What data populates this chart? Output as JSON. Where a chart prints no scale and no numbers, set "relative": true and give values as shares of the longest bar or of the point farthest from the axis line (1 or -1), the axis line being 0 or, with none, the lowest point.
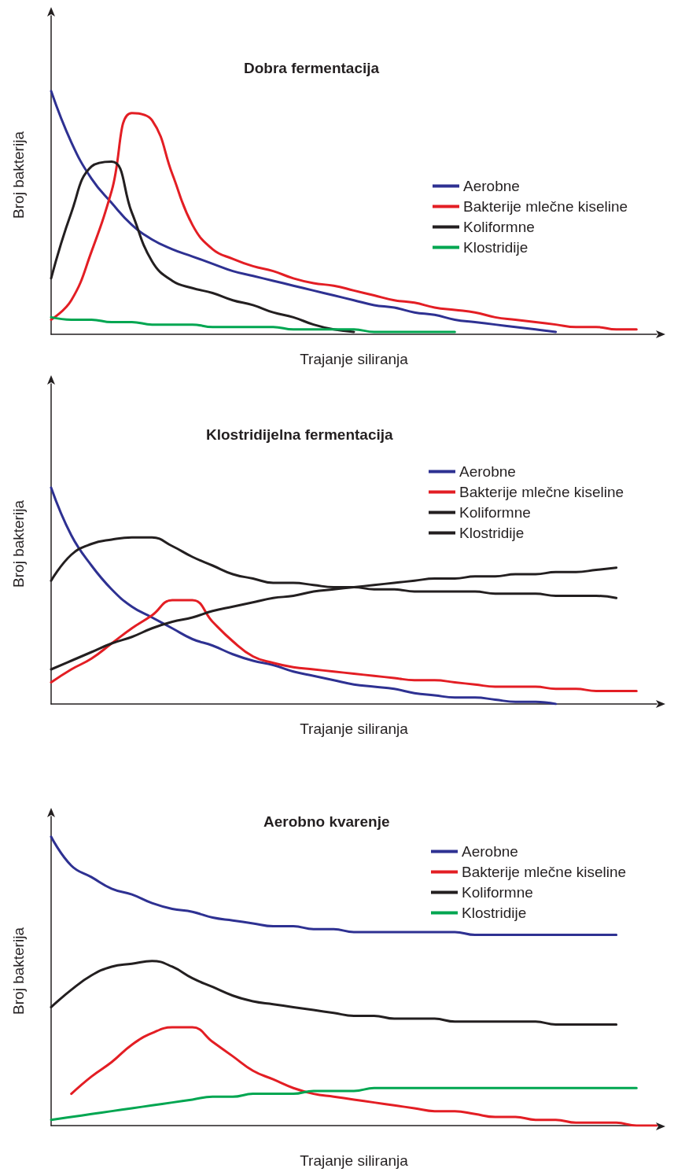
{
  "chart_data": [
    {
      "type": "line",
      "title": "Dobra fermentacija",
      "xlabel": "Trajanje siliranja",
      "ylabel": "Broj bakterija",
      "relative": true,
      "legend": "right",
      "grid": false,
      "marker": "none",
      "line_style": "solid",
      "categories": [
        null,
        null,
        null,
        null,
        null,
        null,
        null,
        null,
        null,
        null,
        null,
        null,
        null,
        null,
        null,
        null,
        null,
        null,
        null,
        null,
        null,
        null,
        null,
        null,
        null,
        null,
        null,
        null,
        null,
        null,
        null
      ],
      "series": [
        {
          "name": "Aerobne",
          "color": "#2e3192",
          "values": [
            1.0,
            0.79,
            0.64,
            0.54,
            0.45,
            0.39,
            0.35,
            0.32,
            0.29,
            0.26,
            0.24,
            0.22,
            0.2,
            0.18,
            0.16,
            0.14,
            0.12,
            0.11,
            0.09,
            0.08,
            0.06,
            0.05,
            0.04,
            0.03,
            0.02,
            0.01,
            null,
            null,
            null,
            null,
            null
          ]
        },
        {
          "name": "Bakterije mlečne kiseline",
          "color": "#e31e24",
          "values": [
            0.06,
            0.14,
            0.34,
            0.59,
            0.91,
            0.88,
            0.66,
            0.45,
            0.35,
            0.31,
            0.28,
            0.26,
            0.23,
            0.21,
            0.2,
            0.18,
            0.16,
            0.14,
            0.13,
            0.11,
            0.1,
            0.09,
            0.07,
            0.06,
            0.05,
            0.04,
            0.03,
            0.03,
            0.02,
            0.02,
            null
          ]
        },
        {
          "name": "Koliformne",
          "color": "#231f20",
          "values": [
            0.23,
            0.5,
            0.69,
            0.71,
            0.5,
            0.3,
            0.22,
            0.19,
            0.17,
            0.14,
            0.12,
            0.09,
            0.07,
            0.04,
            0.02,
            0.01,
            null,
            null,
            null,
            null,
            null,
            null,
            null,
            null,
            null,
            null,
            null,
            null,
            null,
            null,
            null
          ]
        },
        {
          "name": "Klostridije",
          "color": "#00a651",
          "values": [
            0.07,
            0.06,
            0.06,
            0.05,
            0.05,
            0.04,
            0.04,
            0.04,
            0.03,
            0.03,
            0.03,
            0.03,
            0.02,
            0.02,
            0.02,
            0.02,
            0.01,
            0.01,
            0.01,
            0.01,
            0.01,
            null,
            null,
            null,
            null,
            null,
            null,
            null,
            null,
            null,
            null
          ]
        }
      ]
    },
    {
      "type": "line",
      "title": "Klostridijelna fermentacija",
      "xlabel": "Trajanje siliranja",
      "ylabel": "Broj bakterija",
      "relative": true,
      "legend": "top right",
      "grid": false,
      "marker": "none",
      "line_style": "solid",
      "categories": [
        null,
        null,
        null,
        null,
        null,
        null,
        null,
        null,
        null,
        null,
        null,
        null,
        null,
        null,
        null,
        null,
        null,
        null,
        null,
        null,
        null,
        null,
        null,
        null,
        null,
        null,
        null,
        null,
        null,
        null,
        null
      ],
      "series": [
        {
          "name": "Aerobne",
          "color": "#2e3192",
          "values": [
            1.0,
            0.78,
            0.64,
            0.53,
            0.45,
            0.4,
            0.35,
            0.3,
            0.27,
            0.23,
            0.2,
            0.18,
            0.15,
            0.13,
            0.11,
            0.09,
            0.08,
            0.07,
            0.05,
            0.04,
            0.03,
            0.03,
            0.02,
            0.01,
            0.01,
            0.0,
            null,
            null,
            null,
            null,
            null
          ]
        },
        {
          "name": "Bakterije mlečne kiseline",
          "color": "#e31e24",
          "values": [
            0.1,
            0.16,
            0.21,
            0.28,
            0.35,
            0.41,
            0.48,
            0.48,
            0.38,
            0.29,
            0.22,
            0.19,
            0.17,
            0.16,
            0.15,
            0.14,
            0.13,
            0.12,
            0.11,
            0.11,
            0.1,
            0.09,
            0.08,
            0.08,
            0.08,
            0.07,
            0.07,
            0.06,
            0.06,
            0.06,
            null
          ]
        },
        {
          "name": "Koliformne",
          "color": "#231f20",
          "values": [
            0.57,
            0.69,
            0.74,
            0.76,
            0.77,
            0.77,
            0.73,
            0.68,
            0.64,
            0.6,
            0.58,
            0.56,
            0.56,
            0.55,
            0.54,
            0.54,
            0.53,
            0.53,
            0.52,
            0.52,
            0.52,
            0.52,
            0.51,
            0.51,
            0.51,
            0.5,
            0.5,
            0.5,
            0.49,
            null,
            null
          ]
        },
        {
          "name": "Klostridije",
          "color": "#231f20",
          "values": [
            0.16,
            0.2,
            0.24,
            0.28,
            0.31,
            0.35,
            0.38,
            0.4,
            0.43,
            0.45,
            0.47,
            0.49,
            0.5,
            0.52,
            0.53,
            0.54,
            0.55,
            0.56,
            0.57,
            0.58,
            0.58,
            0.59,
            0.59,
            0.6,
            0.6,
            0.61,
            0.61,
            0.62,
            0.63,
            null,
            null
          ]
        }
      ]
    },
    {
      "type": "line",
      "title": "Aerobno kvarenje",
      "xlabel": "Trajanje siliranja",
      "ylabel": "Broj bakterija",
      "relative": true,
      "legend": "top right",
      "grid": false,
      "marker": "none",
      "line_style": "solid",
      "categories": [
        null,
        null,
        null,
        null,
        null,
        null,
        null,
        null,
        null,
        null,
        null,
        null,
        null,
        null,
        null,
        null,
        null,
        null,
        null,
        null,
        null,
        null,
        null,
        null,
        null,
        null,
        null,
        null,
        null,
        null,
        null
      ],
      "series": [
        {
          "name": "Aerobne",
          "color": "#2e3192",
          "values": [
            1.0,
            0.9,
            0.86,
            0.82,
            0.8,
            0.77,
            0.75,
            0.74,
            0.72,
            0.71,
            0.7,
            0.69,
            0.69,
            0.68,
            0.68,
            0.67,
            0.67,
            0.67,
            0.67,
            0.67,
            0.67,
            0.66,
            0.66,
            0.66,
            0.66,
            0.66,
            0.66,
            0.66,
            0.66,
            null,
            null
          ]
        },
        {
          "name": "Bakterije mlečne kiseline",
          "color": "#e31e24",
          "values": [
            null,
            0.11,
            0.17,
            0.22,
            0.28,
            0.32,
            0.34,
            0.34,
            0.29,
            0.24,
            0.19,
            0.16,
            0.13,
            0.11,
            0.1,
            0.09,
            0.08,
            0.07,
            0.06,
            0.05,
            0.05,
            0.04,
            0.03,
            0.03,
            0.02,
            0.02,
            0.01,
            0.01,
            0.01,
            0.0,
            0.0
          ]
        },
        {
          "name": "Koliformne",
          "color": "#231f20",
          "values": [
            0.41,
            0.47,
            0.52,
            0.55,
            0.56,
            0.57,
            0.55,
            0.51,
            0.48,
            0.45,
            0.43,
            0.42,
            0.41,
            0.4,
            0.39,
            0.38,
            0.38,
            0.37,
            0.37,
            0.37,
            0.36,
            0.36,
            0.36,
            0.36,
            0.36,
            0.35,
            0.35,
            0.35,
            0.35,
            null,
            null
          ]
        },
        {
          "name": "Klostridije",
          "color": "#00a651",
          "values": [
            0.02,
            0.03,
            0.04,
            0.05,
            0.06,
            0.07,
            0.08,
            0.09,
            0.1,
            0.1,
            0.11,
            0.11,
            0.11,
            0.12,
            0.12,
            0.12,
            0.13,
            0.13,
            0.13,
            0.13,
            0.13,
            0.13,
            0.13,
            0.13,
            0.13,
            0.13,
            0.13,
            0.13,
            0.13,
            0.13,
            null
          ]
        }
      ]
    }
  ]
}
